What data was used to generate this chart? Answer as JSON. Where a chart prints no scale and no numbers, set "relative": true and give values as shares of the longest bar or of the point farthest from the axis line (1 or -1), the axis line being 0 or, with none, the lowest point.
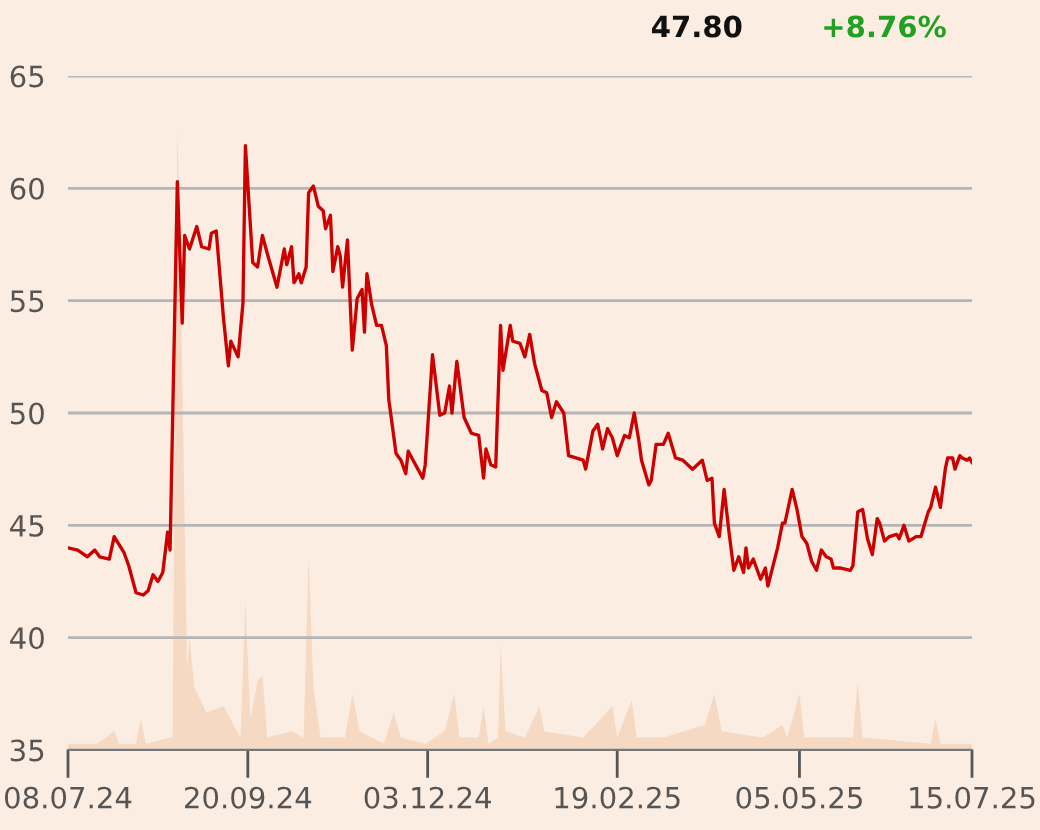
{
  "chart_data": [
    {
      "type": "line",
      "annotations": [
        "47.80",
        "+8.76%"
      ],
      "xlim": [
        "2024-07-08",
        "2025-07-15"
      ],
      "xticks": [
        {
          "value": "2024-07-08",
          "label": "08.07.24"
        },
        {
          "value": "2024-09-20",
          "label": "20.09.24"
        },
        {
          "value": "2024-12-03",
          "label": "03.12.24"
        },
        {
          "value": "2025-02-19",
          "label": "19.02.25"
        },
        {
          "value": "2025-05-05",
          "label": "05.05.25"
        },
        {
          "value": "2025-07-15",
          "label": "15.07.25"
        }
      ],
      "ylim": [
        35,
        65
      ],
      "yticks": [
        35,
        40,
        45,
        50,
        55,
        60,
        65
      ],
      "grid": "y",
      "series": [
        {
          "color": "#cc0000",
          "x": [
            "2024-07-08",
            "2024-07-12",
            "2024-07-16",
            "2024-07-19",
            "2024-07-21",
            "2024-07-25",
            "2024-07-27",
            "2024-07-31",
            "2024-08-02",
            "2024-08-05",
            "2024-08-08",
            "2024-08-10",
            "2024-08-12",
            "2024-08-14",
            "2024-08-16",
            "2024-08-18",
            "2024-08-19",
            "2024-08-22",
            "2024-08-24",
            "2024-08-25",
            "2024-08-27",
            "2024-08-30",
            "2024-09-01",
            "2024-09-04",
            "2024-09-05",
            "2024-09-07",
            "2024-09-10",
            "2024-09-12",
            "2024-09-13",
            "2024-09-16",
            "2024-09-18",
            "2024-09-19",
            "2024-09-22",
            "2024-09-24",
            "2024-09-26",
            "2024-09-28",
            "2024-10-02",
            "2024-10-05",
            "2024-10-06",
            "2024-10-08",
            "2024-10-09",
            "2024-10-11",
            "2024-10-12",
            "2024-10-14",
            "2024-10-15",
            "2024-10-17",
            "2024-10-19",
            "2024-10-21",
            "2024-10-22",
            "2024-10-24",
            "2024-10-25",
            "2024-10-27",
            "2024-10-28",
            "2024-10-29",
            "2024-10-31",
            "2024-11-02",
            "2024-11-04",
            "2024-11-06",
            "2024-11-07",
            "2024-11-08",
            "2024-11-10",
            "2024-11-12",
            "2024-11-14",
            "2024-11-16",
            "2024-11-17",
            "2024-11-20",
            "2024-11-22",
            "2024-11-24",
            "2024-11-25",
            "2024-11-27",
            "2024-12-01",
            "2024-12-02",
            "2024-12-05",
            "2024-12-08",
            "2024-12-10",
            "2024-12-12",
            "2024-12-13",
            "2024-12-15",
            "2024-12-18",
            "2024-12-21",
            "2024-12-24",
            "2024-12-26",
            "2024-12-27",
            "2024-12-29",
            "2024-12-31",
            "2025-01-02",
            "2025-01-03",
            "2025-01-06",
            "2025-01-07",
            "2025-01-10",
            "2025-01-12",
            "2025-01-14",
            "2025-01-16",
            "2025-01-19",
            "2025-01-21",
            "2025-01-23",
            "2025-01-25",
            "2025-01-28",
            "2025-01-30",
            "2025-02-02",
            "2025-02-05",
            "2025-02-06",
            "2025-02-09",
            "2025-02-11",
            "2025-02-13",
            "2025-02-15",
            "2025-02-17",
            "2025-02-19",
            "2025-02-22",
            "2025-02-24",
            "2025-02-26",
            "2025-02-28",
            "2025-03-01",
            "2025-03-04",
            "2025-03-05",
            "2025-03-07",
            "2025-03-10",
            "2025-03-12",
            "2025-03-15",
            "2025-03-18",
            "2025-03-22",
            "2025-03-24",
            "2025-03-26",
            "2025-03-28",
            "2025-03-30",
            "2025-03-31",
            "2025-04-02",
            "2025-04-04",
            "2025-04-06",
            "2025-04-08",
            "2025-04-10",
            "2025-04-12",
            "2025-04-13",
            "2025-04-14",
            "2025-04-16",
            "2025-04-17",
            "2025-04-19",
            "2025-04-21",
            "2025-04-22",
            "2025-04-26",
            "2025-04-28",
            "2025-04-29",
            "2025-05-02",
            "2025-05-04",
            "2025-05-06",
            "2025-05-08",
            "2025-05-10",
            "2025-05-12",
            "2025-05-14",
            "2025-05-16",
            "2025-05-18",
            "2025-05-19",
            "2025-05-22",
            "2025-05-26",
            "2025-05-27",
            "2025-05-29",
            "2025-05-31",
            "2025-06-02",
            "2025-06-04",
            "2025-06-06",
            "2025-06-07",
            "2025-06-09",
            "2025-06-11",
            "2025-06-14",
            "2025-06-15",
            "2025-06-17",
            "2025-06-19",
            "2025-06-22",
            "2025-06-24",
            "2025-06-27",
            "2025-06-28",
            "2025-06-30",
            "2025-07-02",
            "2025-07-04",
            "2025-07-05",
            "2025-07-07",
            "2025-07-08",
            "2025-07-10",
            "2025-07-11",
            "2025-07-13",
            "2025-07-14",
            "2025-07-15"
          ],
          "values": [
            44.0,
            43.9,
            43.6,
            43.9,
            43.6,
            43.5,
            44.5,
            43.8,
            43.2,
            42.0,
            41.9,
            42.1,
            42.8,
            42.5,
            42.9,
            44.7,
            43.9,
            60.3,
            54.0,
            57.9,
            57.3,
            58.3,
            57.4,
            57.3,
            58.0,
            58.1,
            54.2,
            52.1,
            53.2,
            52.5,
            54.9,
            61.9,
            56.7,
            56.5,
            57.9,
            57.1,
            55.6,
            57.3,
            56.6,
            57.4,
            55.8,
            56.2,
            55.8,
            56.5,
            59.8,
            60.1,
            59.2,
            59.0,
            58.2,
            58.8,
            56.3,
            57.4,
            57.0,
            55.6,
            57.7,
            52.8,
            55.1,
            55.5,
            53.6,
            56.2,
            54.8,
            53.9,
            53.9,
            53.0,
            50.6,
            48.2,
            47.9,
            47.3,
            48.3,
            47.9,
            47.1,
            47.7,
            52.6,
            49.9,
            50.0,
            51.2,
            50.0,
            52.3,
            49.8,
            49.1,
            49.0,
            47.1,
            48.4,
            47.7,
            47.6,
            53.9,
            51.9,
            53.9,
            53.2,
            53.1,
            52.5,
            53.5,
            52.2,
            51.0,
            50.9,
            49.8,
            50.5,
            50.0,
            48.1,
            48.0,
            47.9,
            47.5,
            49.2,
            49.5,
            48.4,
            49.3,
            48.9,
            48.1,
            49.0,
            48.9,
            50.0,
            48.7,
            47.9,
            46.8,
            47.0,
            48.6,
            48.6,
            49.1,
            48.0,
            47.9,
            47.5,
            47.7,
            47.9,
            47.0,
            47.1,
            45.1,
            44.5,
            46.6,
            44.7,
            43.0,
            43.6,
            42.9,
            44.0,
            43.1,
            43.5,
            43.2,
            42.6,
            43.1,
            42.3,
            44.0,
            45.1,
            45.1,
            46.6,
            45.7,
            44.5,
            44.2,
            43.4,
            43.0,
            43.9,
            43.6,
            43.5,
            43.1,
            43.1,
            43.0,
            43.2,
            45.6,
            45.7,
            44.4,
            43.7,
            45.3,
            45.1,
            44.3,
            44.5,
            44.6,
            44.4,
            45.0,
            44.3,
            44.5,
            44.5,
            45.6,
            45.8,
            46.7,
            45.8,
            47.5,
            48.0,
            48.0,
            47.5,
            48.1,
            48.0,
            47.9,
            48.0,
            47.8
          ]
        }
      ]
    },
    {
      "type": "area",
      "relative": true,
      "xlim": [
        "2024-07-08",
        "2025-07-15"
      ],
      "series": [
        {
          "color": "#f6d9c3",
          "x": [
            "2024-07-08",
            "2024-07-20",
            "2024-07-27",
            "2024-07-29",
            "2024-08-05",
            "2024-08-07",
            "2024-08-09",
            "2024-08-19",
            "2024-08-20",
            "2024-08-22",
            "2024-08-24",
            "2024-08-26",
            "2024-08-27",
            "2024-08-29",
            "2024-09-03",
            "2024-09-10",
            "2024-09-17",
            "2024-09-19",
            "2024-09-21",
            "2024-09-24",
            "2024-09-26",
            "2024-09-28",
            "2024-10-08",
            "2024-10-13",
            "2024-10-15",
            "2024-10-17",
            "2024-10-20",
            "2024-10-30",
            "2024-11-02",
            "2024-11-05",
            "2024-11-15",
            "2024-11-19",
            "2024-11-22",
            "2024-12-02",
            "2024-12-10",
            "2024-12-14",
            "2024-12-16",
            "2024-12-24",
            "2024-12-26",
            "2024-12-28",
            "2025-01-01",
            "2025-01-02",
            "2025-01-04",
            "2025-01-12",
            "2025-01-18",
            "2025-01-20",
            "2025-02-05",
            "2025-02-17",
            "2025-02-19",
            "2025-02-25",
            "2025-02-27",
            "2025-03-10",
            "2025-03-27",
            "2025-03-31",
            "2025-04-03",
            "2025-04-20",
            "2025-04-28",
            "2025-04-30",
            "2025-05-05",
            "2025-05-07",
            "2025-05-27",
            "2025-05-29",
            "2025-05-31",
            "2025-06-28",
            "2025-06-30",
            "2025-07-02",
            "2025-07-15"
          ],
          "values": [
            0.01,
            0.01,
            0.03,
            0.01,
            0.01,
            0.05,
            0.01,
            0.02,
            0.02,
            1.0,
            0.6,
            0.13,
            0.18,
            0.1,
            0.06,
            0.07,
            0.02,
            0.24,
            0.05,
            0.11,
            0.12,
            0.02,
            0.03,
            0.02,
            0.31,
            0.1,
            0.02,
            0.02,
            0.09,
            0.03,
            0.01,
            0.06,
            0.02,
            0.01,
            0.03,
            0.09,
            0.02,
            0.02,
            0.07,
            0.01,
            0.02,
            0.17,
            0.03,
            0.02,
            0.07,
            0.03,
            0.02,
            0.07,
            0.02,
            0.08,
            0.02,
            0.02,
            0.04,
            0.09,
            0.03,
            0.02,
            0.04,
            0.02,
            0.09,
            0.02,
            0.02,
            0.11,
            0.02,
            0.01,
            0.05,
            0.01,
            0.01
          ]
        }
      ]
    }
  ]
}
